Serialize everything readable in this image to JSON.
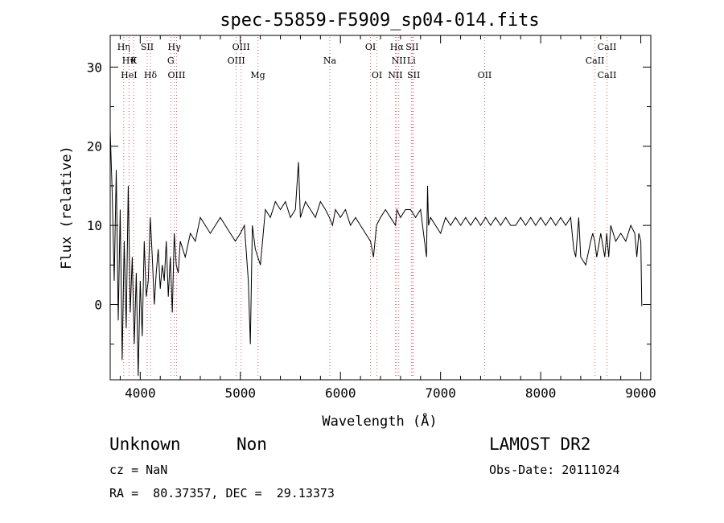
{
  "chart_data": {
    "type": "line",
    "title": "spec-55859-F5909_sp04-014.fits",
    "xlabel": "Wavelength (Å)",
    "ylabel": "Flux (relative)",
    "xlim": [
      3700,
      9100
    ],
    "ylim": [
      -9.5,
      34
    ],
    "xticks": [
      4000,
      5000,
      6000,
      7000,
      8000,
      9000
    ],
    "yticks": [
      0,
      10,
      20,
      30
    ],
    "grid": false,
    "series": [
      {
        "x": [
          3700,
          3720,
          3740,
          3760,
          3780,
          3800,
          3820,
          3840,
          3860,
          3880,
          3900,
          3920,
          3940,
          3960,
          3980,
          4000,
          4020,
          4040,
          4060,
          4080,
          4100,
          4120,
          4140,
          4160,
          4180,
          4200,
          4220,
          4240,
          4260,
          4280,
          4300,
          4320,
          4340,
          4360,
          4380,
          4400,
          4450,
          4500,
          4550,
          4600,
          4650,
          4700,
          4750,
          4800,
          4850,
          4900,
          4950,
          5000,
          5040,
          5080,
          5100,
          5120,
          5150,
          5200,
          5250,
          5300,
          5350,
          5400,
          5450,
          5500,
          5550,
          5580,
          5600,
          5650,
          5700,
          5750,
          5800,
          5850,
          5890,
          5920,
          5950,
          6000,
          6050,
          6100,
          6150,
          6200,
          6250,
          6300,
          6330,
          6360,
          6400,
          6450,
          6500,
          6550,
          6563,
          6600,
          6650,
          6700,
          6750,
          6800,
          6860,
          6870,
          6880,
          6900,
          6950,
          7000,
          7050,
          7100,
          7150,
          7200,
          7250,
          7300,
          7350,
          7400,
          7450,
          7500,
          7550,
          7600,
          7650,
          7700,
          7750,
          7800,
          7850,
          7900,
          7950,
          8000,
          8050,
          8100,
          8150,
          8200,
          8250,
          8300,
          8330,
          8350,
          8380,
          8400,
          8450,
          8500,
          8520,
          8540,
          8560,
          8600,
          8640,
          8660,
          8680,
          8700,
          8750,
          8800,
          8850,
          8900,
          8940,
          8960,
          8980,
          9000,
          9010
        ],
        "y": [
          22,
          14,
          3,
          17,
          -2,
          12,
          -7,
          8,
          -3,
          15,
          -1,
          6,
          -5,
          4,
          -9,
          3,
          -4,
          8,
          1,
          3,
          11,
          6,
          0,
          4,
          7,
          2,
          5,
          3,
          8,
          1,
          6,
          -1,
          9,
          5,
          4,
          8,
          6,
          9,
          8,
          11,
          10,
          9,
          10,
          11,
          10,
          9,
          8,
          9,
          10,
          3,
          -5,
          10,
          7,
          5,
          12,
          11,
          13,
          12,
          13,
          11,
          12,
          18,
          11,
          13,
          12,
          11,
          13,
          12,
          11,
          10,
          12,
          11,
          12,
          10,
          11,
          10,
          9,
          8,
          6,
          10,
          11,
          12,
          11,
          10,
          12,
          11,
          12,
          12,
          11,
          12,
          6,
          15,
          10,
          11,
          10,
          9,
          11,
          10,
          11,
          10,
          11,
          10,
          11,
          10,
          11,
          10,
          11,
          10,
          11,
          10,
          10,
          11,
          10,
          11,
          10,
          11,
          10,
          11,
          10,
          11,
          10,
          11,
          7,
          6,
          11,
          6,
          5,
          8,
          9,
          8,
          6,
          9,
          6,
          9,
          6,
          10,
          8,
          9,
          8,
          10,
          9,
          6,
          9,
          8,
          -0.2
        ]
      }
    ],
    "line_markers": [
      {
        "label": "Hη",
        "x": 3835,
        "row": 0
      },
      {
        "label": "Hϑ",
        "x": 3889,
        "row": 1
      },
      {
        "label": "HeI",
        "x": 3888,
        "row": 2
      },
      {
        "label": "K",
        "x": 3934,
        "row": 1
      },
      {
        "label": "SII",
        "x": 4070,
        "row": 0
      },
      {
        "label": "Hδ",
        "x": 4102,
        "row": 2
      },
      {
        "label": "Hγ",
        "x": 4340,
        "row": 0
      },
      {
        "label": "G",
        "x": 4305,
        "row": 1
      },
      {
        "label": "OIII",
        "x": 4363,
        "row": 2
      },
      {
        "label": "OIII",
        "x": 5007,
        "row": 0
      },
      {
        "label": "OIII",
        "x": 4959,
        "row": 1
      },
      {
        "label": "Mg",
        "x": 5175,
        "row": 2
      },
      {
        "label": "Na",
        "x": 5893,
        "row": 1
      },
      {
        "label": "OI",
        "x": 6300,
        "row": 0
      },
      {
        "label": "OI",
        "x": 6364,
        "row": 2
      },
      {
        "label": "Hα",
        "x": 6563,
        "row": 0
      },
      {
        "label": "SII",
        "x": 6716,
        "row": 0
      },
      {
        "label": "NII",
        "x": 6583,
        "row": 1
      },
      {
        "label": "Li",
        "x": 6708,
        "row": 1
      },
      {
        "label": "NII",
        "x": 6548,
        "row": 2
      },
      {
        "label": "SII",
        "x": 6731,
        "row": 2
      },
      {
        "label": "OII",
        "x": 7440,
        "row": 2
      },
      {
        "label": "CaII",
        "x": 8662,
        "row": 0
      },
      {
        "label": "CaII",
        "x": 8542,
        "row": 1
      },
      {
        "label": "CaII",
        "x": 8662,
        "row": 2
      }
    ]
  },
  "info": {
    "object_class": "Unknown",
    "subclass": "Non",
    "survey": "LAMOST DR2",
    "redshift": "cz = NaN",
    "obs_date": "Obs-Date: 20111024",
    "coords": "RA =  80.37357, DEC =  29.13373"
  }
}
